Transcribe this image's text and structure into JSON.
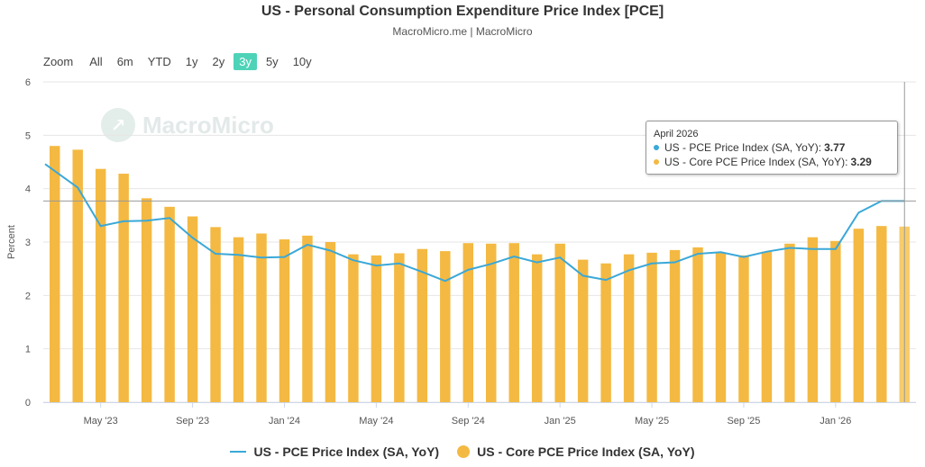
{
  "header": {
    "title": "US - Personal Consumption Expenditure Price Index [PCE]",
    "subtitle": "MacroMicro.me | MacroMicro"
  },
  "zoom": {
    "label": "Zoom",
    "options": [
      "All",
      "6m",
      "YTD",
      "1y",
      "2y",
      "3y",
      "5y",
      "10y"
    ],
    "selected": "3y"
  },
  "watermark": "MacroMicro",
  "tooltip": {
    "date": "April 2026",
    "rows": [
      {
        "name": "US - PCE Price Index (SA, YoY)",
        "value": "3.77",
        "color": "#3aa8d8"
      },
      {
        "name": "US - Core PCE Price Index (SA, YoY)",
        "value": "3.29",
        "color": "#f4b942"
      }
    ]
  },
  "legend": [
    {
      "name": "US - PCE Price Index (SA, YoY)",
      "color": "#3aa8d8",
      "symbol": "line"
    },
    {
      "name": "US - Core PCE Price Index (SA, YoY)",
      "color": "#f4b942",
      "symbol": "dot"
    }
  ],
  "chart_data": {
    "type": "bar+line",
    "ylabel": "Percent",
    "ylim": [
      0,
      6
    ],
    "yticks": [
      0,
      1,
      2,
      3,
      4,
      5,
      6
    ],
    "x": [
      "2023-03",
      "2023-04",
      "2023-05",
      "2023-06",
      "2023-07",
      "2023-08",
      "2023-09",
      "2023-10",
      "2023-11",
      "2023-12",
      "2024-01",
      "2024-02",
      "2024-03",
      "2024-04",
      "2024-05",
      "2024-06",
      "2024-07",
      "2024-08",
      "2024-09",
      "2024-10",
      "2024-11",
      "2024-12",
      "2025-01",
      "2025-02",
      "2025-03",
      "2025-04",
      "2025-05",
      "2025-06",
      "2025-07",
      "2025-08",
      "2025-09",
      "2025-10",
      "2025-11",
      "2025-12",
      "2026-01",
      "2026-02",
      "2026-03",
      "2026-04"
    ],
    "xtick_labels": [
      {
        "month": "2023-05",
        "label": "May '23"
      },
      {
        "month": "2023-09",
        "label": "Sep '23"
      },
      {
        "month": "2024-01",
        "label": "Jan '24"
      },
      {
        "month": "2024-05",
        "label": "May '24"
      },
      {
        "month": "2024-09",
        "label": "Sep '24"
      },
      {
        "month": "2025-01",
        "label": "Jan '25"
      },
      {
        "month": "2025-05",
        "label": "May '25"
      },
      {
        "month": "2025-09",
        "label": "Sep '25"
      },
      {
        "month": "2026-01",
        "label": "Jan '26"
      }
    ],
    "series": [
      {
        "name": "US - Core PCE Price Index (SA, YoY)",
        "type": "bar",
        "color": "#f4b942",
        "values": [
          4.8,
          4.73,
          4.37,
          4.28,
          3.82,
          3.66,
          3.48,
          3.28,
          3.09,
          3.16,
          3.05,
          3.12,
          3.0,
          2.77,
          2.75,
          2.79,
          2.87,
          2.83,
          2.98,
          2.97,
          2.98,
          2.77,
          2.97,
          2.67,
          2.6,
          2.77,
          2.8,
          2.85,
          2.9,
          2.8,
          2.75,
          2.82,
          2.97,
          3.09,
          3.02,
          3.25,
          3.3,
          3.29
        ]
      },
      {
        "name": "US - PCE Price Index (SA, YoY)",
        "type": "line",
        "color": "#3aa8d8",
        "values": [
          4.46,
          4.02,
          3.3,
          3.39,
          3.4,
          3.45,
          3.08,
          2.78,
          2.76,
          2.71,
          2.72,
          2.95,
          2.84,
          2.66,
          2.56,
          2.6,
          2.44,
          2.27,
          2.48,
          2.59,
          2.73,
          2.62,
          2.71,
          2.37,
          2.29,
          2.47,
          2.6,
          2.62,
          2.78,
          2.81,
          2.72,
          2.82,
          2.89,
          2.87,
          2.87,
          3.55,
          3.77,
          3.77
        ]
      }
    ]
  }
}
